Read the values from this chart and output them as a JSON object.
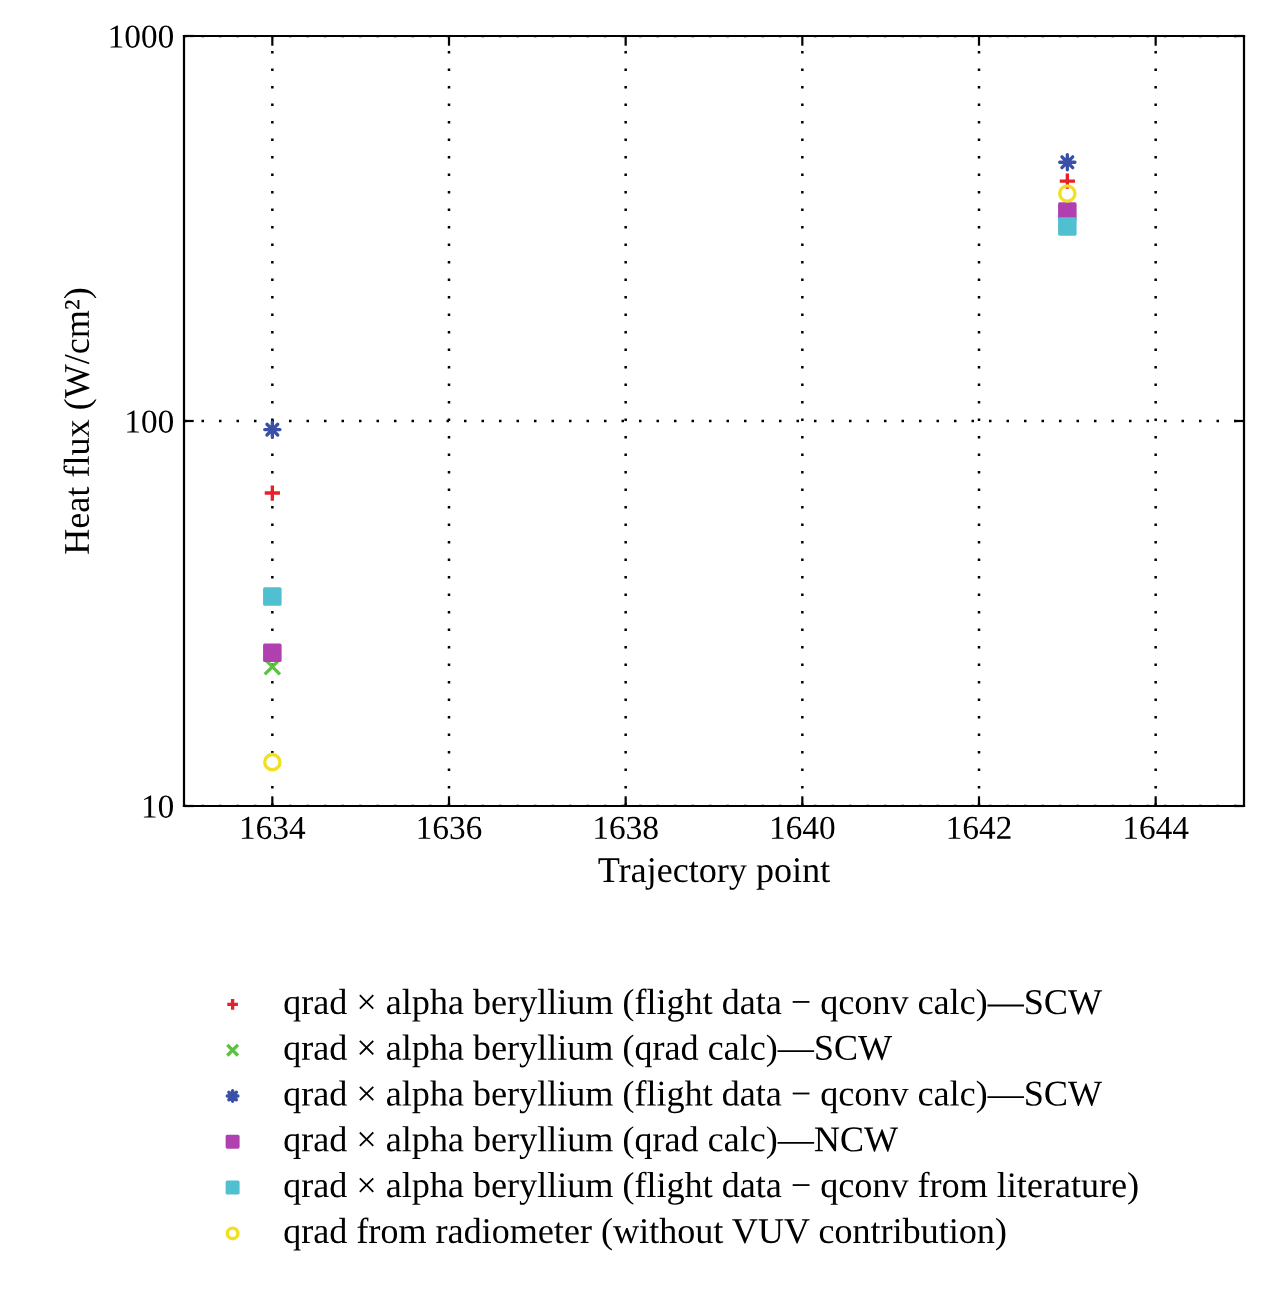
{
  "chart_data": {
    "type": "scatter",
    "xlabel": "Trajectory point",
    "ylabel": "Heat flux (W/cm²)",
    "x": [
      1634,
      1643
    ],
    "series": [
      {
        "name": "qrad × alpha beryllium (flight data − qconv calc)—SCW",
        "color": "#e8202a",
        "marker": "cross",
        "values": [
          65,
          420
        ]
      },
      {
        "name": "qrad × alpha beryllium (qrad calc)—SCW",
        "color": "#5cc040",
        "marker": "x",
        "values": [
          23,
          null
        ]
      },
      {
        "name": "qrad × alpha beryllium (flight data − qconv calc)—SCW",
        "color": "#3a50a8",
        "marker": "star",
        "values": [
          95,
          470
        ]
      },
      {
        "name": "qrad × alpha beryllium (qrad calc)—NCW",
        "color": "#b040b0",
        "marker": "square",
        "values": [
          25,
          350
        ]
      },
      {
        "name": "qrad × alpha beryllium (flight data − qconv from literature)",
        "color": "#50c0d0",
        "marker": "square",
        "values": [
          35,
          320
        ]
      },
      {
        "name": "qrad from radiometer (without VUV contribution)",
        "color": "#f0e020",
        "marker": "circle",
        "values": [
          13,
          390
        ]
      }
    ],
    "log": "y",
    "xlim": [
      1633,
      1645
    ],
    "xticks": [
      1634,
      1636,
      1638,
      1640,
      1642,
      1644
    ],
    "ylim": [
      10,
      1000
    ],
    "yticks": [
      10,
      100,
      1000
    ],
    "grid": true,
    "legend": "bottom"
  }
}
